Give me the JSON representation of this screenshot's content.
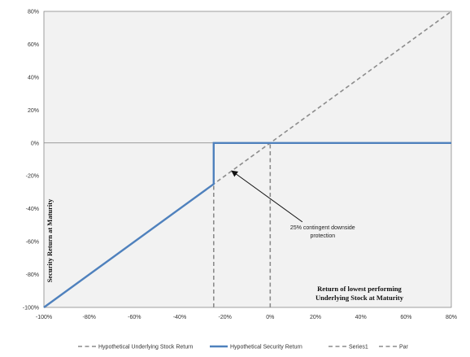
{
  "chart_data": {
    "type": "line",
    "title": "",
    "xlabel_lines": [
      "Return of lowest performing",
      "Underlying Stock at Maturity"
    ],
    "ylabel": "Security Return at Maturity",
    "xlim": [
      -100,
      80
    ],
    "ylim": [
      -100,
      80
    ],
    "x_ticks": [
      "-100%",
      "-80%",
      "-60%",
      "-40%",
      "-20%",
      "0%",
      "20%",
      "40%",
      "60%",
      "80%"
    ],
    "y_ticks": [
      "80%",
      "60%",
      "40%",
      "20%",
      "0%",
      "-20%",
      "-40%",
      "-60%",
      "-80%",
      "-100%"
    ],
    "x_tick_values": [
      -100,
      -80,
      -60,
      -40,
      -20,
      0,
      20,
      40,
      60,
      80
    ],
    "y_tick_values": [
      80,
      60,
      40,
      20,
      0,
      -20,
      -40,
      -60,
      -80,
      -100
    ],
    "grid": false,
    "legend_position": "bottom",
    "series": [
      {
        "name": "Hypothetical Underlying Stock Return",
        "style": "dashed",
        "color": "#8c8c8c",
        "points": [
          [
            -100,
            -100
          ],
          [
            80,
            80
          ]
        ]
      },
      {
        "name": "Hypothetical Security Return",
        "style": "solid",
        "color": "#4f81bd",
        "points": [
          [
            -100,
            -100
          ],
          [
            -25,
            -25
          ],
          [
            -25,
            0
          ],
          [
            80,
            0
          ]
        ]
      },
      {
        "name": "Series1",
        "style": "dashed",
        "color": "#8c8c8c",
        "points": [
          [
            -25,
            -100
          ],
          [
            -25,
            -25
          ]
        ]
      },
      {
        "name": "Par",
        "style": "dashed",
        "color": "#8c8c8c",
        "points": [
          [
            0,
            -100
          ],
          [
            0,
            0
          ]
        ]
      }
    ],
    "annotation": {
      "lines": [
        "25% contingent downside",
        "protection"
      ],
      "arrow_to": [
        -17,
        -17
      ],
      "text_at": [
        7,
        -48
      ]
    },
    "colors": {
      "plot_background": "#f2f2f2",
      "zero_line": "#7f7f7f",
      "axis": "#888888"
    }
  }
}
